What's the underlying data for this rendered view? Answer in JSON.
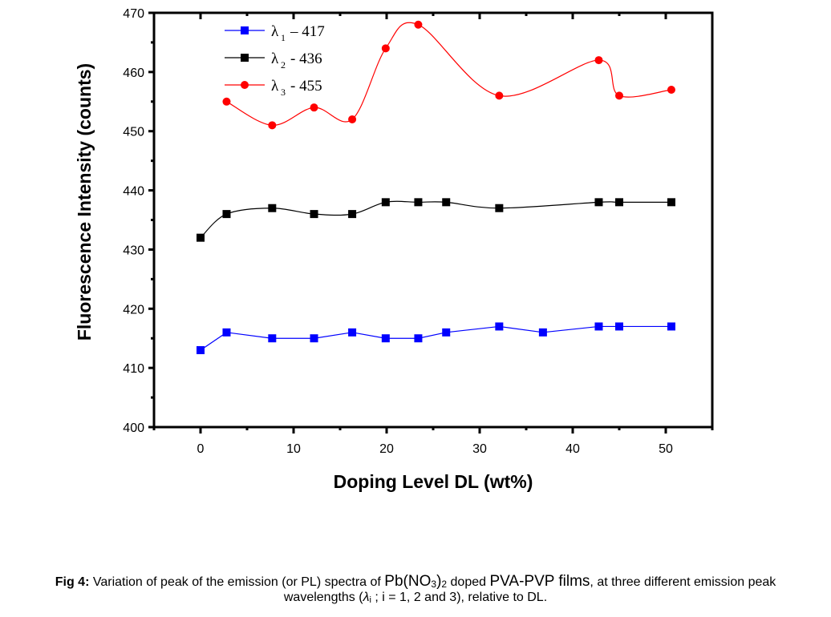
{
  "chart_data": {
    "type": "line",
    "xlabel": "Doping Level DL (wt%)",
    "ylabel": "Fluorescence Intensity (counts)",
    "xlim": [
      -5,
      55
    ],
    "ylim": [
      400,
      470
    ],
    "xticks": [
      0,
      10,
      20,
      30,
      40,
      50
    ],
    "yticks": [
      400,
      410,
      420,
      430,
      440,
      450,
      460,
      470
    ],
    "grid": false,
    "legend_position": "top-left",
    "series": [
      {
        "name": "λ1 – 417",
        "symbol": "λ",
        "sub": "1",
        "suffix": "– 417",
        "color": "#0000FF",
        "marker": "square",
        "line": "straight",
        "x": [
          0,
          2.8,
          7.7,
          12.2,
          16.3,
          19.9,
          23.4,
          26.4,
          32.1,
          36.8,
          42.8,
          45.0,
          50.6
        ],
        "y": [
          413,
          416,
          415,
          415,
          416,
          415,
          415,
          416,
          417,
          416,
          417,
          417,
          417
        ]
      },
      {
        "name": "λ2 - 436",
        "symbol": "λ",
        "sub": "2",
        "suffix": "- 436",
        "color": "#000000",
        "marker": "square",
        "line": "smooth",
        "x": [
          0,
          2.8,
          7.7,
          12.2,
          16.3,
          19.9,
          23.4,
          26.4,
          32.1,
          42.8,
          45.0,
          50.6
        ],
        "y": [
          432,
          436,
          437,
          436,
          436,
          438,
          438,
          438,
          437,
          438,
          438,
          438
        ]
      },
      {
        "name": "λ3 - 455",
        "symbol": "λ",
        "sub": "3",
        "suffix": "- 455",
        "color": "#FF0000",
        "marker": "circle",
        "line": "smooth",
        "x": [
          2.8,
          7.7,
          12.2,
          16.3,
          19.9,
          23.4,
          32.1,
          42.8,
          45.0,
          50.6
        ],
        "y": [
          455,
          451,
          454,
          452,
          464,
          468,
          456,
          462,
          456,
          457
        ]
      }
    ]
  },
  "caption": {
    "label": "Fig 4:",
    "part1": " Variation of peak of the emission (or PL) spectra of ",
    "formula_a": "Pb(NO",
    "formula_sub1": "3",
    "formula_b": ")",
    "formula_sub2": "2",
    "part2": " doped ",
    "films": "PVA-PVP films",
    "part3": ", at three different emission peak",
    "line2_a": "wavelengths (",
    "lambda": "λ",
    "lambda_sub": "i",
    "line2_b": " ; i = 1, 2 and 3), relative to DL."
  }
}
